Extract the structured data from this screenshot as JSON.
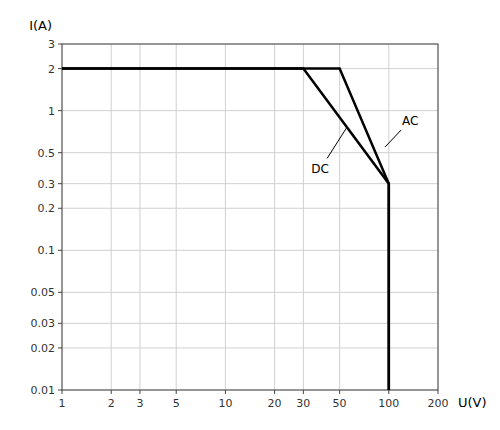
{
  "chart_data": {
    "type": "line",
    "log": true,
    "grid": true,
    "xlabel": "U(V)",
    "ylabel": "I(A)",
    "xlim": [
      1,
      200
    ],
    "ylim": [
      0.01,
      3
    ],
    "xticks": [
      1,
      2,
      3,
      5,
      10,
      20,
      30,
      50,
      100,
      200
    ],
    "yticks": [
      0.01,
      0.02,
      0.03,
      0.05,
      0.1,
      0.2,
      0.3,
      0.5,
      1,
      2,
      3
    ],
    "series": [
      {
        "color": "#000000",
        "x": [
          1,
          30,
          100,
          100
        ],
        "values": [
          2,
          2,
          0.3,
          0.01
        ]
      },
      {
        "color": "#000000",
        "x": [
          1,
          50,
          100,
          100
        ],
        "values": [
          2,
          2,
          0.3,
          0.01
        ]
      }
    ],
    "annotations": [
      {
        "text": "DC",
        "xy": [
          55,
          0.75
        ],
        "xytext": [
          38,
          0.38
        ]
      },
      {
        "text": "AC",
        "xy": [
          95,
          0.55
        ],
        "xytext": [
          135,
          0.85
        ]
      }
    ]
  }
}
